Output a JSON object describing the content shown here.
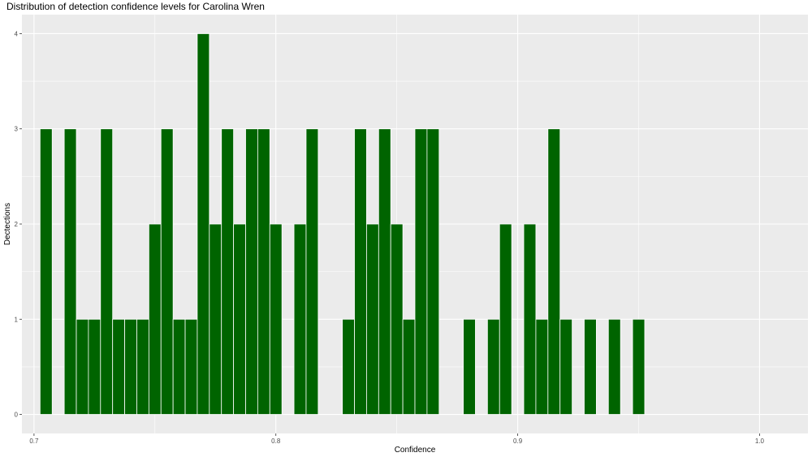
{
  "chart_data": {
    "type": "bar",
    "title": "Distribution of detection confidence levels for Carolina Wren",
    "xlabel": "Confidence",
    "ylabel": "Dectections",
    "xlim": [
      0.695,
      1.02
    ],
    "ylim": [
      -0.2,
      4.2
    ],
    "x_ticks": [
      0.7,
      0.8,
      0.9,
      1.0
    ],
    "x_tick_labels": [
      "0.7",
      "0.8",
      "0.9",
      "1.0"
    ],
    "y_ticks": [
      0,
      1,
      2,
      3,
      4
    ],
    "y_tick_labels": [
      "0",
      "1",
      "2",
      "3",
      "4"
    ],
    "bin_width": 0.005,
    "bin_starts": [
      0.7025,
      0.7125,
      0.7175,
      0.7225,
      0.7275,
      0.7325,
      0.7375,
      0.7425,
      0.7475,
      0.7525,
      0.7575,
      0.7625,
      0.7675,
      0.7725,
      0.7775,
      0.7825,
      0.7875,
      0.7925,
      0.7975,
      0.8075,
      0.8125,
      0.8275,
      0.8325,
      0.8375,
      0.8425,
      0.8475,
      0.8525,
      0.8575,
      0.8625,
      0.8775,
      0.8875,
      0.8925,
      0.9025,
      0.9075,
      0.9125,
      0.9175,
      0.9275,
      0.9375,
      0.9475
    ],
    "values": [
      3,
      3,
      1,
      1,
      3,
      1,
      1,
      1,
      2,
      3,
      1,
      1,
      4,
      2,
      3,
      2,
      3,
      3,
      2,
      2,
      3,
      1,
      3,
      2,
      3,
      2,
      1,
      3,
      3,
      1,
      1,
      2,
      2,
      1,
      3,
      1,
      1,
      1,
      1
    ],
    "bar_color": "#006400",
    "panel_background": "#ebebeb",
    "grid": true,
    "grid_color": "#ffffff",
    "legend": "none"
  }
}
